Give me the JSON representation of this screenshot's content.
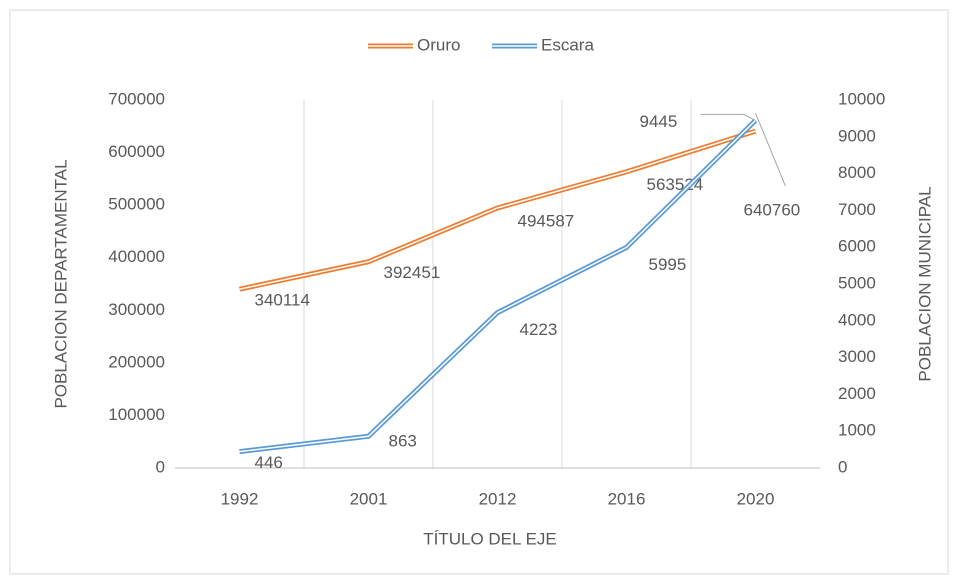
{
  "chart_data": {
    "type": "line",
    "categories": [
      "1992",
      "2001",
      "2012",
      "2016",
      "2020"
    ],
    "series": [
      {
        "name": "Oruro",
        "color": "#ed7d31",
        "values": [
          340114,
          392451,
          494587,
          563524,
          640760
        ]
      },
      {
        "name": "Escara",
        "color": "#5b9bd5",
        "axis": "y2",
        "values": [
          446,
          863,
          4223,
          5995,
          9445
        ]
      }
    ],
    "xlabel": "TÍTULO DEL EJE",
    "ylabel": "POBLACION DEPARTAMENTAL",
    "y2label": "POBLACION MUNICIPAL",
    "ylim": [
      0,
      700000
    ],
    "yticks": [
      0,
      100000,
      200000,
      300000,
      400000,
      500000,
      600000,
      700000
    ],
    "y2lim": [
      0,
      10000
    ],
    "y2ticks": [
      0,
      1000,
      2000,
      3000,
      4000,
      5000,
      6000,
      7000,
      8000,
      9000,
      10000
    ],
    "grid": true,
    "legend": "top"
  }
}
